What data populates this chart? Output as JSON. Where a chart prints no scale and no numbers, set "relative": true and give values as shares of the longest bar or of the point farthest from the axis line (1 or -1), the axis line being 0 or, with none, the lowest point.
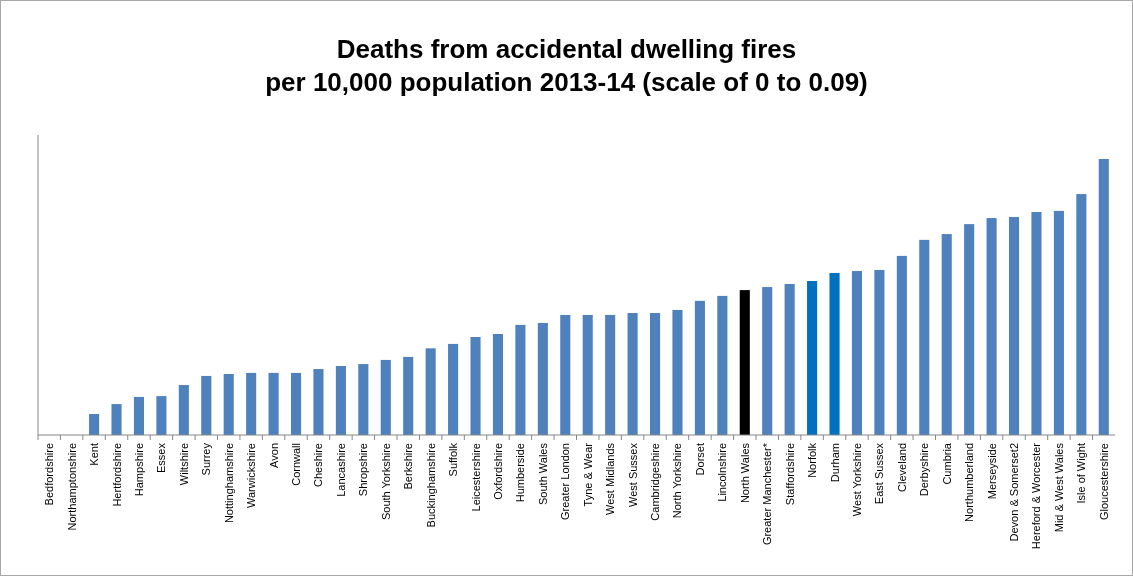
{
  "chart_data": {
    "type": "bar",
    "title": "Deaths from accidental dwelling fires\nper 10,000 population 2013-14 (scale of 0 to 0.09)",
    "categories": [
      "Bedfordshire",
      "Northamptonshire",
      "Kent",
      "Hertfordshire",
      "Hampshire",
      "Essex",
      "Wiltshire",
      "Surrey",
      "Nottinghamshire",
      "Warwickshire",
      "Avon",
      "Cornwall",
      "Cheshire",
      "Lancashire",
      "Shropshire",
      "South Yorkshire",
      "Berkshire",
      "Buckinghamshire",
      "Suffolk",
      "Leicestershire",
      "Oxfordshire",
      "Humberside",
      "South Wales",
      "Greater London",
      "Tyne & Wear",
      "West Midlands",
      "West Sussex",
      "Cambridgeshire",
      "North Yorkshire",
      "Dorset",
      "Lincolnshire",
      "North Wales",
      "Greater Manchester*",
      "Staffordshire",
      "Norfolk",
      "Durham",
      "West Yorkshire",
      "East Sussex",
      "Cleveland",
      "Derbyshire",
      "Cumbria",
      "Northumberland",
      "Merseyside",
      "Devon & Somerset2",
      "Hereford & Worcester",
      "Mid & West Wales",
      "Isle of Wight",
      "Gloucestershire"
    ],
    "values": [
      0,
      0,
      0.076,
      0.112,
      0.138,
      0.141,
      0.181,
      0.214,
      0.221,
      0.225,
      0.225,
      0.225,
      0.239,
      0.25,
      0.257,
      0.272,
      0.283,
      0.314,
      0.33,
      0.355,
      0.366,
      0.399,
      0.406,
      0.435,
      0.435,
      0.435,
      0.442,
      0.442,
      0.453,
      0.486,
      0.504,
      0.525,
      0.536,
      0.547,
      0.558,
      0.587,
      0.594,
      0.598,
      0.649,
      0.707,
      0.728,
      0.764,
      0.786,
      0.79,
      0.808,
      0.812,
      0.873,
      1
    ],
    "colors": [
      "#4f81bd",
      "#4f81bd",
      "#4f81bd",
      "#4f81bd",
      "#4f81bd",
      "#4f81bd",
      "#4f81bd",
      "#4f81bd",
      "#4f81bd",
      "#4f81bd",
      "#4f81bd",
      "#4f81bd",
      "#4f81bd",
      "#4f81bd",
      "#4f81bd",
      "#4f81bd",
      "#4f81bd",
      "#4f81bd",
      "#4f81bd",
      "#4f81bd",
      "#4f81bd",
      "#4f81bd",
      "#4f81bd",
      "#4f81bd",
      "#4f81bd",
      "#4f81bd",
      "#4f81bd",
      "#4f81bd",
      "#4f81bd",
      "#4f81bd",
      "#4f81bd",
      "#000000",
      "#4f81bd",
      "#4f81bd",
      "#0070c0",
      "#0070c0",
      "#4f81bd",
      "#4f81bd",
      "#4f81bd",
      "#4f81bd",
      "#4f81bd",
      "#4f81bd",
      "#4f81bd",
      "#4f81bd",
      "#4f81bd",
      "#4f81bd",
      "#4f81bd",
      "#4f81bd"
    ],
    "relative": true
  }
}
